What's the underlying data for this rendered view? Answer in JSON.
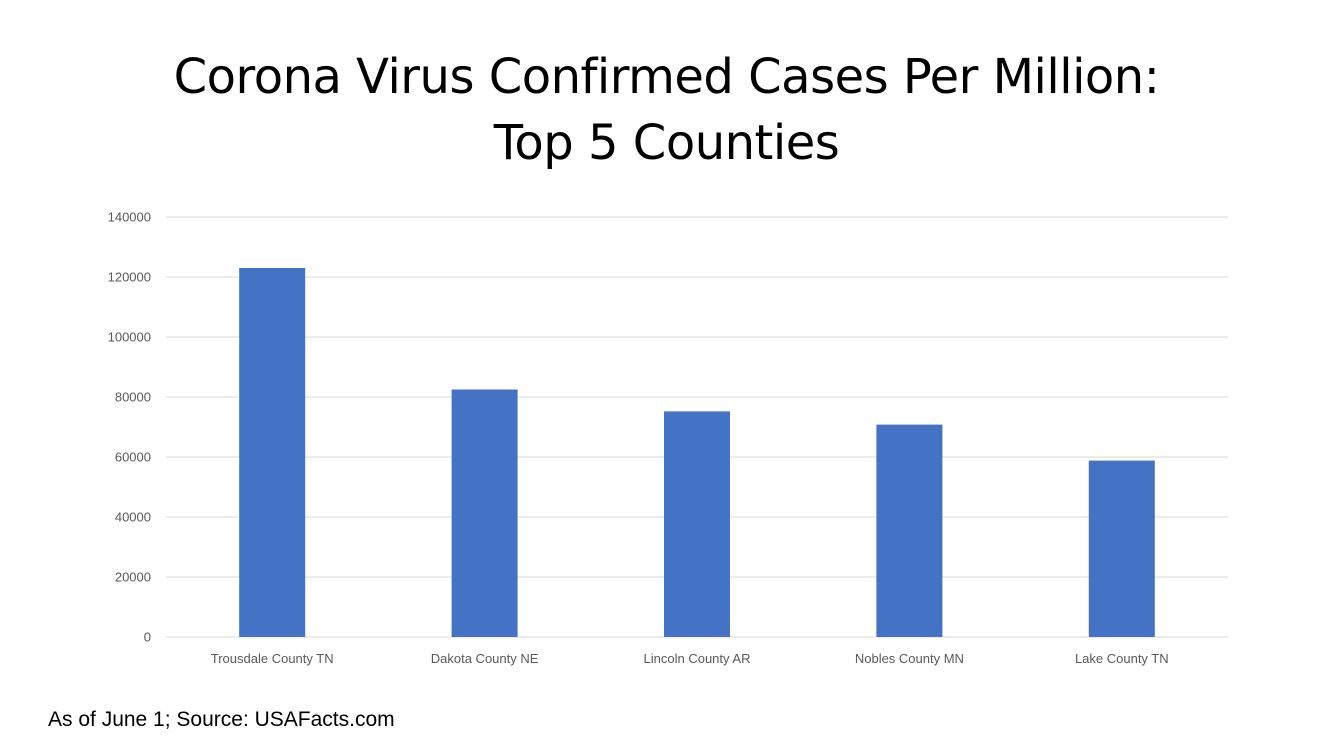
{
  "slide": {
    "title_line1": "Corona Virus Confirmed Cases Per Million:",
    "title_line2": "Top 5 Counties",
    "footnote": "As of June 1; Source: USAFacts.com"
  },
  "chart_data": {
    "type": "bar",
    "title": "Corona Virus Confirmed Cases Per Million: Top 5 Counties",
    "categories": [
      "Trousdale County TN",
      "Dakota County NE",
      "Lincoln County AR",
      "Nobles County MN",
      "Lake County TN"
    ],
    "values": [
      123000,
      82500,
      75200,
      70800,
      58800
    ],
    "yticks": [
      "0",
      "20000",
      "40000",
      "60000",
      "80000",
      "100000",
      "120000",
      "140000"
    ],
    "ylim": [
      0,
      140000
    ],
    "xlabel": "",
    "ylabel": "",
    "grid": true,
    "legend": "none",
    "bar_color": "#4472C4",
    "grid_color": "#D9D9D9",
    "tick_label_color": "#595959"
  }
}
